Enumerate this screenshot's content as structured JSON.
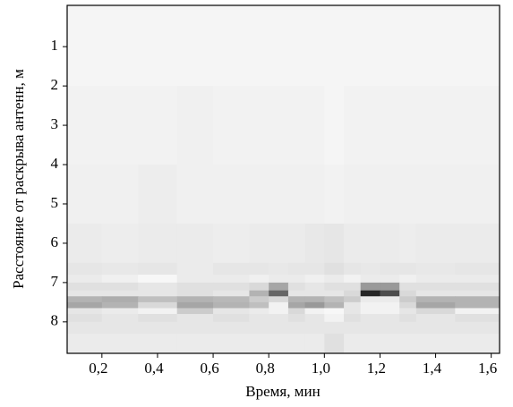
{
  "chart_data": {
    "type": "heatmap",
    "x_label": "Время, мин",
    "y_label": "Расстояние от раскрыва антенн, м",
    "xlim": [
      0.075,
      1.63
    ],
    "ylim": [
      -0.05,
      8.8
    ],
    "y_inverted": true,
    "xticks": [
      {
        "value": 0.2,
        "label": "0,2"
      },
      {
        "value": 0.4,
        "label": "0,4"
      },
      {
        "value": 0.6,
        "label": "0,6"
      },
      {
        "value": 0.8,
        "label": "0,8"
      },
      {
        "value": 1.0,
        "label": "1,0"
      },
      {
        "value": 1.2,
        "label": "1,2"
      },
      {
        "value": 1.4,
        "label": "1,4"
      },
      {
        "value": 1.6,
        "label": "1,6"
      }
    ],
    "yticks": [
      1,
      2,
      3,
      4,
      5,
      6,
      7,
      8
    ],
    "x_bins": [
      0.075,
      0.2,
      0.33,
      0.47,
      0.6,
      0.73,
      0.8,
      0.87,
      0.93,
      1.0,
      1.07,
      1.13,
      1.2,
      1.27,
      1.33,
      1.47,
      1.63
    ],
    "y_bins": [
      -0.05,
      2,
      4,
      5.5,
      6.5,
      6.8,
      7.0,
      7.2,
      7.35,
      7.5,
      7.65,
      7.8,
      8.0,
      8.3,
      8.8
    ],
    "z": [
      [
        0.04,
        0.04,
        0.04,
        0.04,
        0.04,
        0.04,
        0.04,
        0.04,
        0.04,
        0.04,
        0.04,
        0.04,
        0.04,
        0.04,
        0.04,
        0.04
      ],
      [
        0.05,
        0.05,
        0.05,
        0.06,
        0.05,
        0.05,
        0.05,
        0.05,
        0.05,
        0.04,
        0.05,
        0.05,
        0.05,
        0.05,
        0.05,
        0.05
      ],
      [
        0.06,
        0.06,
        0.07,
        0.06,
        0.06,
        0.06,
        0.06,
        0.06,
        0.06,
        0.05,
        0.06,
        0.06,
        0.06,
        0.06,
        0.06,
        0.06
      ],
      [
        0.08,
        0.07,
        0.08,
        0.08,
        0.07,
        0.08,
        0.08,
        0.08,
        0.09,
        0.1,
        0.08,
        0.08,
        0.08,
        0.07,
        0.08,
        0.08
      ],
      [
        0.1,
        0.09,
        0.1,
        0.08,
        0.1,
        0.1,
        0.09,
        0.1,
        0.1,
        0.12,
        0.1,
        0.09,
        0.1,
        0.1,
        0.09,
        0.1
      ],
      [
        0.08,
        0.06,
        0.03,
        0.08,
        0.08,
        0.06,
        0.08,
        0.08,
        0.06,
        0.08,
        0.05,
        0.08,
        0.08,
        0.06,
        0.08,
        0.08
      ],
      [
        0.12,
        0.12,
        0.1,
        0.12,
        0.12,
        0.15,
        0.35,
        0.12,
        0.1,
        0.12,
        0.12,
        0.4,
        0.4,
        0.12,
        0.12,
        0.12
      ],
      [
        0.1,
        0.1,
        0.1,
        0.12,
        0.1,
        0.3,
        0.6,
        0.1,
        0.1,
        0.1,
        0.15,
        0.85,
        0.7,
        0.15,
        0.1,
        0.1
      ],
      [
        0.3,
        0.32,
        0.25,
        0.3,
        0.28,
        0.2,
        0.15,
        0.3,
        0.3,
        0.25,
        0.2,
        0.08,
        0.08,
        0.2,
        0.3,
        0.3
      ],
      [
        0.35,
        0.3,
        0.15,
        0.35,
        0.3,
        0.25,
        0.05,
        0.35,
        0.4,
        0.3,
        0.1,
        0.05,
        0.05,
        0.15,
        0.35,
        0.3
      ],
      [
        0.1,
        0.08,
        0.05,
        0.2,
        0.1,
        0.08,
        0.05,
        0.15,
        0.05,
        0.03,
        0.1,
        0.05,
        0.05,
        0.1,
        0.15,
        0.05
      ],
      [
        0.12,
        0.1,
        0.12,
        0.1,
        0.12,
        0.1,
        0.1,
        0.12,
        0.1,
        0.05,
        0.12,
        0.1,
        0.1,
        0.12,
        0.1,
        0.12
      ],
      [
        0.1,
        0.1,
        0.1,
        0.1,
        0.1,
        0.1,
        0.1,
        0.1,
        0.1,
        0.1,
        0.1,
        0.1,
        0.1,
        0.1,
        0.1,
        0.1
      ],
      [
        0.08,
        0.08,
        0.08,
        0.08,
        0.08,
        0.08,
        0.08,
        0.08,
        0.08,
        0.12,
        0.08,
        0.08,
        0.08,
        0.08,
        0.08,
        0.08
      ]
    ]
  }
}
